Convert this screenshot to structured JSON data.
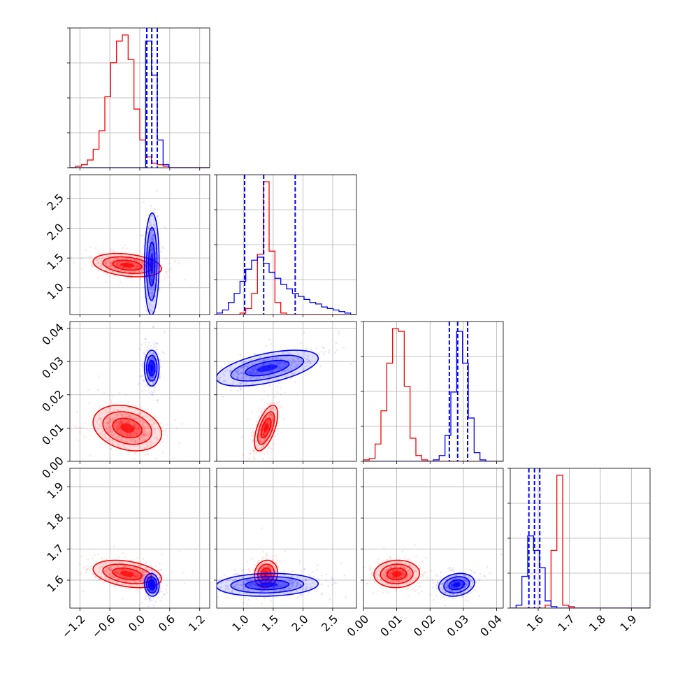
{
  "chart_data": {
    "type": "corner",
    "colors": {
      "series_a": "#ff0000",
      "series_b": "#0000ff"
    },
    "grid": true,
    "parameters": [
      {
        "range": [
          -1.4,
          1.4
        ],
        "ticks": [
          "−1.2",
          "−0.6",
          "0.0",
          "0.6",
          "1.2"
        ],
        "tick_values": [
          -1.2,
          -0.6,
          0.0,
          0.6,
          1.2
        ]
      },
      {
        "range": [
          0.55,
          2.9
        ],
        "ticks": [
          "1.0",
          "1.5",
          "2.0",
          "2.5"
        ],
        "tick_values": [
          1.0,
          1.5,
          2.0,
          2.5
        ]
      },
      {
        "range": [
          0.0,
          0.042
        ],
        "ticks": [
          "0.00",
          "0.01",
          "0.02",
          "0.03",
          "0.04"
        ],
        "tick_values": [
          0.0,
          0.01,
          0.02,
          0.03,
          0.04
        ]
      },
      {
        "range": [
          1.51,
          1.96
        ],
        "ticks": [
          "1.6",
          "1.7",
          "1.8",
          "1.9"
        ],
        "tick_values": [
          1.6,
          1.7,
          1.8,
          1.9
        ]
      }
    ],
    "series": [
      {
        "color": "#ff0000",
        "means": [
          -0.25,
          1.38,
          0.01,
          1.62
        ],
        "sds": [
          0.28,
          0.08,
          0.0028,
          0.018
        ],
        "correlations": [
          [
            0,
            1,
            -0.3
          ],
          [
            0,
            2,
            -0.25
          ],
          [
            0,
            3,
            -0.35
          ],
          [
            1,
            2,
            0.6
          ],
          [
            1,
            3,
            0.1
          ],
          [
            2,
            3,
            0.05
          ]
        ],
        "quantiles": null
      },
      {
        "color": "#0000ff",
        "means": [
          0.24,
          1.4,
          0.028,
          1.585
        ],
        "sds": [
          0.06,
          0.35,
          0.0022,
          0.015
        ],
        "correlations": [
          [
            0,
            1,
            0.05
          ],
          [
            0,
            2,
            0.0
          ],
          [
            0,
            3,
            -0.1
          ],
          [
            1,
            2,
            0.55
          ],
          [
            1,
            3,
            0.1
          ],
          [
            2,
            3,
            0.2
          ]
        ],
        "quantiles": [
          [
            0.14,
            0.24,
            0.35
          ],
          [
            1.02,
            1.34,
            1.87
          ],
          [
            0.0258,
            0.0283,
            0.0313
          ],
          [
            1.57,
            1.588,
            1.605
          ]
        ]
      }
    ],
    "hist_bins": [
      {
        "param": 0,
        "range": [
          -1.4,
          1.4
        ],
        "bins": 24,
        "red": [
          0,
          1,
          2,
          5,
          12,
          24,
          46,
          68,
          82,
          86,
          70,
          38,
          18,
          7,
          3,
          2,
          1,
          0,
          0,
          0,
          0,
          0,
          0,
          0
        ],
        "blue": [
          0,
          0,
          0,
          0,
          0,
          0,
          0,
          0,
          0,
          0,
          0,
          0,
          0,
          82,
          60,
          18,
          2,
          0,
          0,
          0,
          0,
          0,
          0,
          0
        ]
      },
      {
        "param": 1,
        "range": [
          0.55,
          2.9
        ],
        "bins": 24,
        "red": [
          0,
          0,
          0,
          0,
          1,
          4,
          14,
          40,
          88,
          42,
          8,
          1,
          0,
          0,
          0,
          0,
          0,
          0,
          0,
          0,
          0,
          0,
          0,
          0
        ],
        "blue": [
          1,
          3,
          8,
          14,
          22,
          30,
          36,
          38,
          34,
          28,
          24,
          20,
          17,
          14,
          12,
          10,
          8,
          7,
          5,
          4,
          3,
          2,
          1,
          0
        ]
      },
      {
        "param": 2,
        "range": [
          0.0,
          0.042
        ],
        "bins": 24,
        "red": [
          1,
          2,
          12,
          35,
          68,
          92,
          90,
          52,
          16,
          4,
          1,
          0,
          0,
          0,
          0,
          0,
          0,
          0,
          0,
          0,
          0,
          0,
          0,
          0
        ],
        "blue": [
          0,
          0,
          0,
          0,
          0,
          0,
          0,
          0,
          0,
          0,
          0,
          0,
          1,
          4,
          18,
          48,
          90,
          68,
          30,
          6,
          1,
          0,
          0,
          0
        ],
        "red_offset": 0,
        "blue_offset": 0
      },
      {
        "param": 3,
        "range": [
          1.51,
          1.96
        ],
        "bins": 24,
        "red": [
          0,
          0,
          0,
          0,
          0,
          0,
          2,
          40,
          92,
          2,
          1,
          0,
          0,
          0,
          0,
          0,
          0,
          0,
          0,
          0,
          0,
          0,
          0,
          0
        ],
        "blue": [
          0,
          2,
          22,
          50,
          40,
          28,
          5,
          1,
          0,
          0,
          0,
          0,
          0,
          0,
          0,
          0,
          0,
          0,
          0,
          0,
          0,
          0,
          0,
          0
        ]
      }
    ]
  }
}
